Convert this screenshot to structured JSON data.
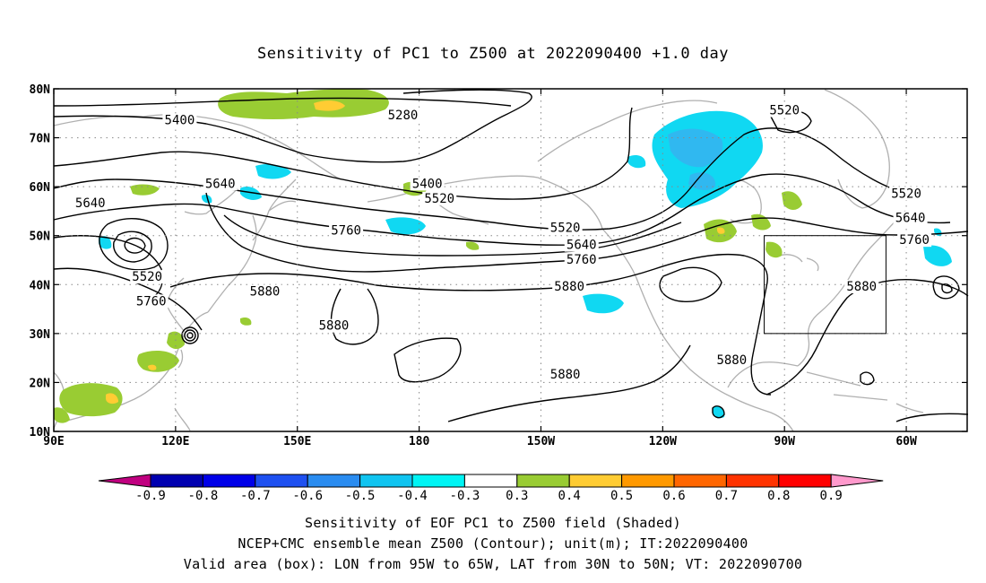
{
  "title": "Sensitivity of PC1 to Z500 at 2022090400 +1.0 day",
  "map": {
    "lat_ticks": [
      "80N",
      "70N",
      "60N",
      "50N",
      "40N",
      "30N",
      "20N",
      "10N"
    ],
    "lon_ticks": [
      "90E",
      "120E",
      "150E",
      "180",
      "150W",
      "120W",
      "90W",
      "60W"
    ],
    "lon_range": [
      90,
      315
    ],
    "lat_range": [
      10,
      80
    ],
    "valid_box": {
      "lon_west": 265,
      "lon_east": 295,
      "lat_south": 30,
      "lat_north": 50
    },
    "contour_labels": [
      {
        "text": "5400",
        "lon": 121,
        "lat": 73.5
      },
      {
        "text": "5280",
        "lon": 176,
        "lat": 74.5
      },
      {
        "text": "5520",
        "lon": 270,
        "lat": 75.5
      },
      {
        "text": "5640",
        "lon": 131,
        "lat": 60.5
      },
      {
        "text": "5400",
        "lon": 182,
        "lat": 60.5
      },
      {
        "text": "5520",
        "lon": 185,
        "lat": 57.5
      },
      {
        "text": "5640",
        "lon": 99,
        "lat": 56.5
      },
      {
        "text": "5520",
        "lon": 216,
        "lat": 51.5
      },
      {
        "text": "5640",
        "lon": 220,
        "lat": 48
      },
      {
        "text": "5760",
        "lon": 220,
        "lat": 45
      },
      {
        "text": "5760",
        "lon": 162,
        "lat": 51
      },
      {
        "text": "5520",
        "lon": 113,
        "lat": 41.5
      },
      {
        "text": "5760",
        "lon": 114,
        "lat": 36.5
      },
      {
        "text": "5880",
        "lon": 142,
        "lat": 38.5
      },
      {
        "text": "5880",
        "lon": 217,
        "lat": 39.5
      },
      {
        "text": "5880",
        "lon": 159,
        "lat": 31.5
      },
      {
        "text": "5520",
        "lon": 300,
        "lat": 58.5
      },
      {
        "text": "5640",
        "lon": 301,
        "lat": 53.5
      },
      {
        "text": "5760",
        "lon": 302,
        "lat": 49
      },
      {
        "text": "5880",
        "lon": 289,
        "lat": 39.5
      },
      {
        "text": "5880",
        "lon": 257,
        "lat": 24.5
      },
      {
        "text": "5880",
        "lon": 216,
        "lat": 21.5
      }
    ]
  },
  "colorbar": {
    "labels": [
      "-0.9",
      "-0.8",
      "-0.7",
      "-0.6",
      "-0.5",
      "-0.4",
      "-0.3",
      "0.3",
      "0.4",
      "0.5",
      "0.6",
      "0.7",
      "0.8",
      "0.9"
    ],
    "colors": [
      "#c00080",
      "#0000b0",
      "#0000e8",
      "#1e50f0",
      "#2a8cf0",
      "#10c4f0",
      "#00f4f4",
      "#ffffff",
      "#99cc33",
      "#ffcc33",
      "#ff9900",
      "#ff6600",
      "#ff3300",
      "#ff0000",
      "#ff99cc"
    ]
  },
  "captions": {
    "line1": "Sensitivity of EOF PC1 to Z500 field (Shaded)",
    "line2": "NCEP+CMC ensemble mean Z500 (Contour); unit(m); IT:2022090400",
    "line3": "Valid area (box): LON from 95W to 65W, LAT from 30N to 50N; VT: 2022090700"
  }
}
